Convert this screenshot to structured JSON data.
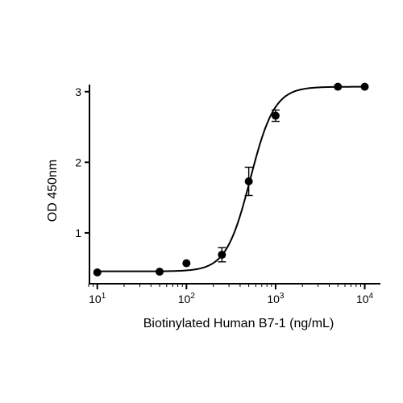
{
  "chart_data": {
    "type": "scatter",
    "xlabel": "Biotinylated Human B7-1 (ng/mL)",
    "ylabel": "OD 450nm",
    "x_scale": "log10",
    "xlim": [
      8,
      15000
    ],
    "ylim": [
      0.28,
      3.1
    ],
    "x_ticks": [
      {
        "value": 10,
        "base": "10",
        "exp": "1"
      },
      {
        "value": 100,
        "base": "10",
        "exp": "2"
      },
      {
        "value": 1000,
        "base": "10",
        "exp": "3"
      },
      {
        "value": 10000,
        "base": "10",
        "exp": "4"
      }
    ],
    "y_ticks": [
      {
        "value": 1,
        "label": "1"
      },
      {
        "value": 2,
        "label": "2"
      },
      {
        "value": 3,
        "label": "3"
      }
    ],
    "grid": false,
    "points": [
      {
        "x": 10,
        "y": 0.44
      },
      {
        "x": 50,
        "y": 0.45
      },
      {
        "x": 100,
        "y": 0.57
      },
      {
        "x": 250,
        "y": 0.69,
        "err": 0.1
      },
      {
        "x": 500,
        "y": 1.73,
        "err": 0.2
      },
      {
        "x": 1000,
        "y": 2.66,
        "err": 0.08
      },
      {
        "x": 5000,
        "y": 3.07
      },
      {
        "x": 10000,
        "y": 3.07
      }
    ],
    "fit": {
      "model": "4PL",
      "bottom": 0.455,
      "top": 3.07,
      "ec50": 520,
      "hill": 3.2
    }
  }
}
